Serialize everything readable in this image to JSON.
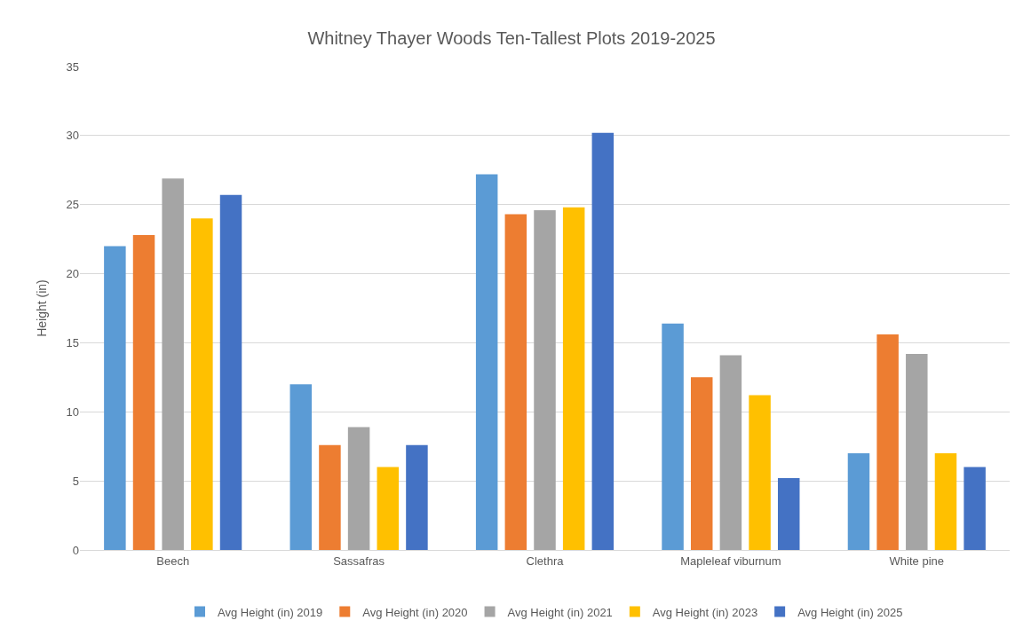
{
  "chart_data": {
    "type": "bar",
    "title": "Whitney Thayer Woods Ten-Tallest Plots 2019-2025",
    "ylabel": "Height (in)",
    "categories": [
      "Beech",
      "Sassafras",
      "Clethra",
      "Mapleleaf viburnum",
      "White pine"
    ],
    "series": [
      {
        "name": "Avg Height (in) 2019",
        "color": "#5b9bd5",
        "values": [
          22.0,
          12.0,
          27.2,
          16.4,
          7.0
        ]
      },
      {
        "name": "Avg Height (in) 2020",
        "color": "#ed7d31",
        "values": [
          22.8,
          7.6,
          24.3,
          12.5,
          15.6
        ]
      },
      {
        "name": "Avg Height (in) 2021",
        "color": "#a5a5a5",
        "values": [
          26.9,
          8.9,
          24.6,
          14.1,
          14.2
        ]
      },
      {
        "name": "Avg Height (in) 2023",
        "color": "#ffc000",
        "values": [
          24.0,
          6.0,
          24.8,
          11.2,
          7.0
        ]
      },
      {
        "name": "Avg Height (in) 2025",
        "color": "#4472c4",
        "values": [
          25.7,
          7.6,
          30.2,
          5.2,
          6.0
        ]
      }
    ],
    "ylim": [
      0,
      35
    ],
    "yticks": [
      0,
      5,
      10,
      15,
      20,
      25,
      30,
      35
    ],
    "grid": "y",
    "legend": "bottom"
  }
}
